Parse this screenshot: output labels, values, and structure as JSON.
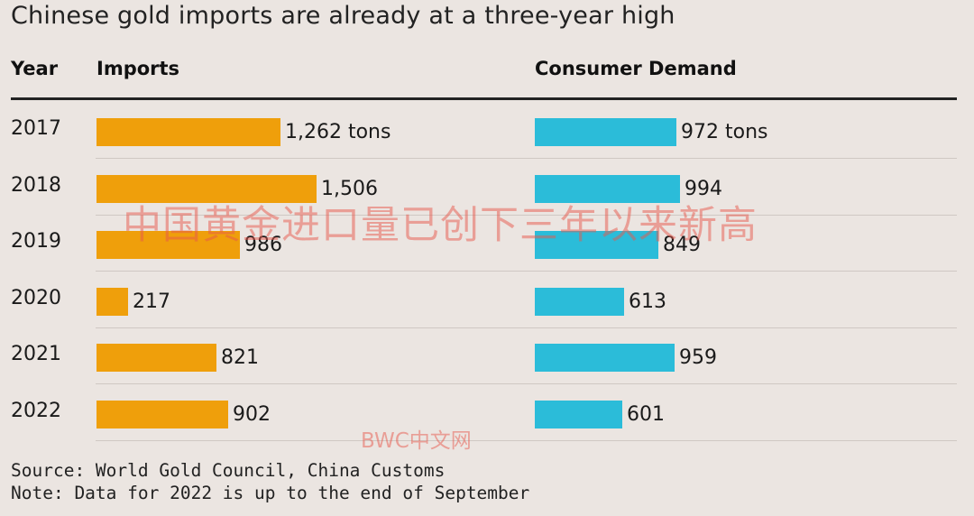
{
  "chart_data": {
    "type": "bar",
    "orientation": "horizontal",
    "title": "Chinese gold imports are already at a three-year high",
    "row_header": "Year",
    "categories": [
      "2017",
      "2018",
      "2019",
      "2020",
      "2021",
      "2022"
    ],
    "series": [
      {
        "name": "Imports",
        "values": [
          1262,
          1506,
          986,
          217,
          821,
          902
        ],
        "labels": [
          "1,262 tons",
          "1,506",
          "986",
          "217",
          "821",
          "902"
        ],
        "color": "#ef9f0b"
      },
      {
        "name": "Consumer Demand",
        "values": [
          972,
          994,
          849,
          613,
          959,
          601
        ],
        "labels": [
          "972 tons",
          "994",
          "849",
          "613",
          "959",
          "601"
        ],
        "color": "#2bbcd9"
      }
    ],
    "unit": "tons"
  },
  "footer": {
    "source": "Source: World Gold Council, China Customs",
    "note": "Note: Data for 2022 is up to the end of September"
  },
  "watermark": {
    "main": "中国黄金进口量已创下三年以来新高",
    "brand": "BWC中文网"
  }
}
